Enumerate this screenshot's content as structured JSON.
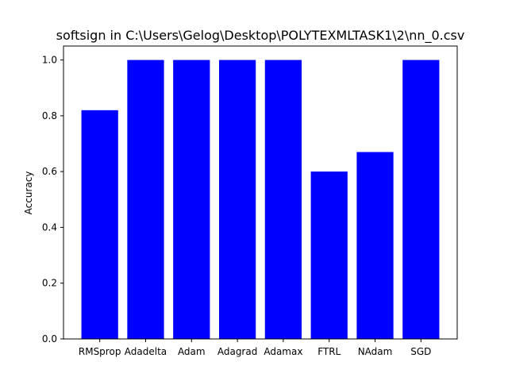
{
  "chart_data": {
    "type": "bar",
    "title": "softsign in C:\\Users\\Gelog\\Desktop\\POLYTEXMLTASK1\\2\\nn_0.csv",
    "xlabel": "",
    "ylabel": "Accuracy",
    "categories": [
      "RMSprop",
      "Adadelta",
      "Adam",
      "Adagrad",
      "Adamax",
      "FTRL",
      "NAdam",
      "SGD"
    ],
    "values": [
      0.82,
      1.0,
      1.0,
      1.0,
      1.0,
      0.6,
      0.67,
      1.0
    ],
    "ylim": [
      0,
      1.05
    ],
    "yticks": [
      "0.0",
      "0.2",
      "0.4",
      "0.6",
      "0.8",
      "1.0"
    ],
    "grid": false,
    "bar_color": "#0000ff"
  }
}
